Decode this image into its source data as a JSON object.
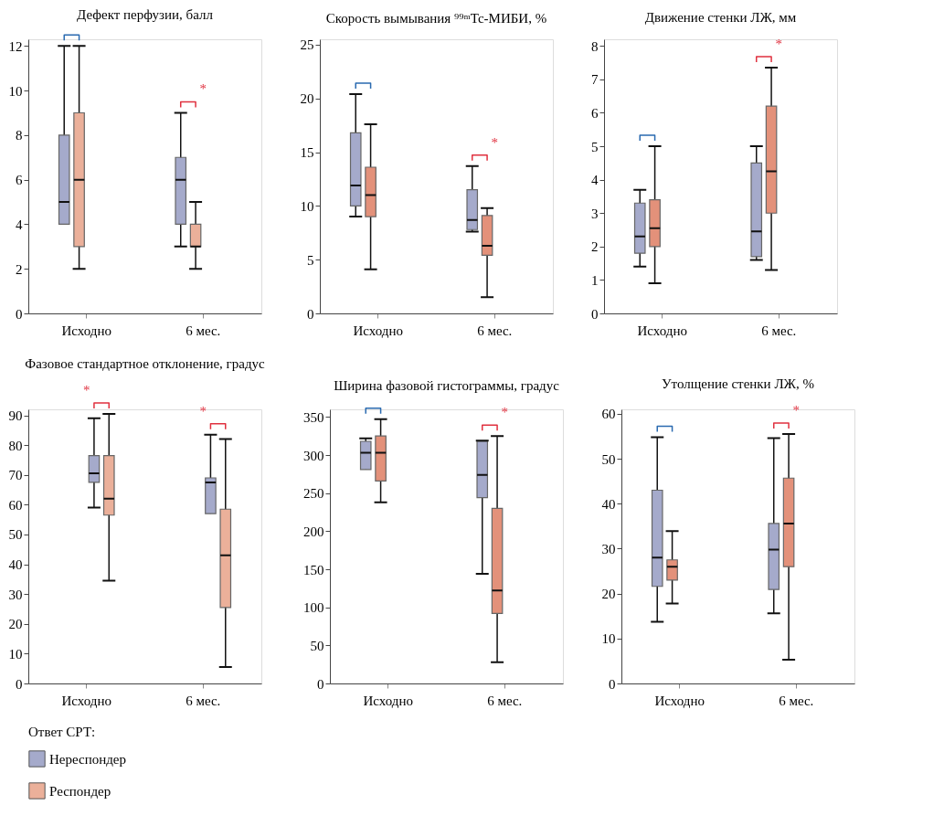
{
  "chart_data": [
    {
      "type": "box",
      "title": "Дефект перфузии, балл",
      "categories": [
        "Исходно",
        "6 мес."
      ],
      "ylim": [
        0,
        12.3
      ],
      "yticks": [
        0,
        2,
        4,
        6,
        8,
        10,
        12
      ],
      "series": [
        {
          "color": "#a5aacb",
          "boxes": [
            {
              "low": 4,
              "q1": 4,
              "median": 5,
              "q3": 8,
              "high": 12
            },
            {
              "low": 3,
              "q1": 4,
              "median": 6,
              "q3": 7,
              "high": 9
            }
          ]
        },
        {
          "color": "#ebb09a",
          "boxes": [
            {
              "low": 2,
              "q1": 3,
              "median": 6,
              "q3": 9,
              "high": 12
            },
            {
              "low": 2,
              "q1": 3,
              "median": 3,
              "q3": 4,
              "high": 5
            }
          ]
        }
      ],
      "annotations": [
        "*"
      ]
    },
    {
      "type": "box",
      "title": "Скорость вымывания ⁹⁹ᵐTc-МИБИ, %",
      "categories": [
        "Исходно",
        "6 мес."
      ],
      "ylim": [
        0,
        25.5
      ],
      "yticks": [
        0,
        5,
        10,
        15,
        20,
        25
      ],
      "series": [
        {
          "color": "#a5aacb",
          "boxes": [
            {
              "low": 9,
              "q1": 10,
              "median": 11.9,
              "q3": 16.8,
              "high": 20.4
            },
            {
              "low": 7.6,
              "q1": 7.8,
              "median": 8.7,
              "q3": 11.5,
              "high": 13.7
            }
          ]
        },
        {
          "color": "#e3917a",
          "boxes": [
            {
              "low": 4.1,
              "q1": 9,
              "median": 11,
              "q3": 13.6,
              "high": 17.6
            },
            {
              "low": 1.5,
              "q1": 5.4,
              "median": 6.3,
              "q3": 9.1,
              "high": 9.8
            }
          ]
        }
      ],
      "annotations": [
        "*"
      ]
    },
    {
      "type": "box",
      "title": "Движение стенки ЛЖ, мм",
      "categories": [
        "Исходно",
        "6 мес."
      ],
      "ylim": [
        0,
        8.2
      ],
      "yticks": [
        0,
        1,
        2,
        3,
        4,
        5,
        6,
        7,
        8
      ],
      "series": [
        {
          "color": "#a5aacb",
          "boxes": [
            {
              "low": 1.4,
              "q1": 1.8,
              "median": 2.3,
              "q3": 3.3,
              "high": 3.7
            },
            {
              "low": 1.6,
              "q1": 1.7,
              "median": 2.45,
              "q3": 4.5,
              "high": 5.0
            }
          ]
        },
        {
          "color": "#e3917a",
          "boxes": [
            {
              "low": 0.9,
              "q1": 2.0,
              "median": 2.55,
              "q3": 3.4,
              "high": 5.0
            },
            {
              "low": 1.3,
              "q1": 3.0,
              "median": 4.25,
              "q3": 6.2,
              "high": 7.35
            }
          ]
        }
      ],
      "annotations": [
        "*"
      ]
    },
    {
      "type": "box",
      "title": "Фазовое стандартное отклонение, градус",
      "categories": [
        "Исходно",
        "6 мес."
      ],
      "ylim": [
        0,
        92
      ],
      "yticks": [
        0,
        10,
        20,
        30,
        40,
        50,
        60,
        70,
        80,
        90
      ],
      "series": [
        {
          "name": "Нереспондер",
          "color": "#a5aacb",
          "boxes": [
            {
              "low": 59,
              "q1": 67.5,
              "median": 70.5,
              "q3": 76.5,
              "high": 89
            },
            {
              "low": 57,
              "q1": 57,
              "median": 67.5,
              "q3": 69,
              "high": 83.5
            }
          ]
        },
        {
          "name": "Респондер",
          "color": "#ebb09a",
          "boxes": [
            {
              "low": 34.5,
              "q1": 56.5,
              "median": 62,
              "q3": 76.5,
              "high": 90.5
            },
            {
              "low": 5.5,
              "q1": 25.5,
              "median": 43,
              "q3": 58.5,
              "high": 82
            }
          ]
        }
      ],
      "annotations": [
        "*",
        "*"
      ],
      "legend": "bottom",
      "legend_title": "Ответ СРТ:"
    },
    {
      "type": "box",
      "title": "Ширина фазовой гистограммы, градус",
      "categories": [
        "Исходно",
        "6 мес."
      ],
      "ylim": [
        0,
        360
      ],
      "yticks": [
        0,
        50,
        100,
        150,
        200,
        250,
        300,
        350
      ],
      "series": [
        {
          "color": "#a5aacb",
          "boxes": [
            {
              "low": 281,
              "q1": 281,
              "median": 303,
              "q3": 318,
              "high": 322
            },
            {
              "low": 144,
              "q1": 244,
              "median": 274,
              "q3": 318,
              "high": 319
            }
          ]
        },
        {
          "color": "#e3917a",
          "boxes": [
            {
              "low": 238,
              "q1": 266,
              "median": 303,
              "q3": 325,
              "high": 347
            },
            {
              "low": 28,
              "q1": 92,
              "median": 122,
              "q3": 230,
              "high": 325
            }
          ]
        }
      ],
      "annotations": [
        "*"
      ]
    },
    {
      "type": "box",
      "title": "Утолщение стенки ЛЖ, %",
      "categories": [
        "Исходно",
        "6 мес."
      ],
      "ylim": [
        0,
        61
      ],
      "yticks": [
        0,
        10,
        20,
        30,
        40,
        50,
        60
      ],
      "series": [
        {
          "color": "#a5aacb",
          "boxes": [
            {
              "low": 13.7,
              "q1": 21.6,
              "median": 28,
              "q3": 43,
              "high": 54.8
            },
            {
              "low": 15.6,
              "q1": 20.9,
              "median": 29.8,
              "q3": 35.6,
              "high": 54.6
            }
          ]
        },
        {
          "color": "#e3917a",
          "boxes": [
            {
              "low": 17.8,
              "q1": 23,
              "median": 26,
              "q3": 27.5,
              "high": 33.9
            },
            {
              "low": 5.3,
              "q1": 26,
              "median": 35.6,
              "q3": 45.7,
              "high": 55.5
            }
          ]
        }
      ],
      "annotations": [
        "*"
      ]
    }
  ]
}
